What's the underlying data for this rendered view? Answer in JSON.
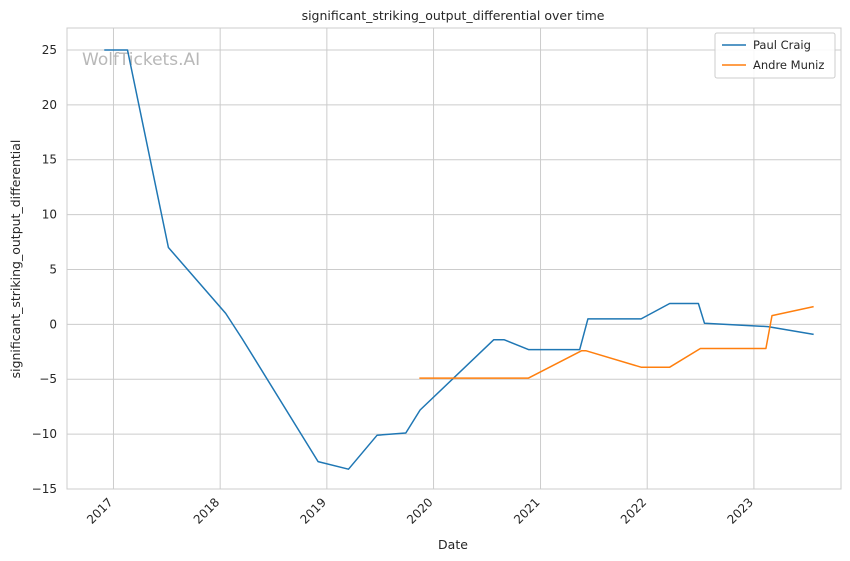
{
  "chart_data": {
    "type": "line",
    "title": "significant_striking_output_differential over time",
    "xlabel": "Date",
    "ylabel": "significant_striking_output_differential",
    "watermark": "WolfTickets.AI",
    "x_ticks": [
      "2017",
      "2018",
      "2019",
      "2020",
      "2021",
      "2022",
      "2023"
    ],
    "y_ticks": [
      -15,
      -10,
      -5,
      0,
      5,
      10,
      15,
      20,
      25
    ],
    "xlim": [
      "2016-07-26",
      "2023-10-26"
    ],
    "ylim": [
      -15,
      27
    ],
    "grid": true,
    "legend_position": "top-right",
    "series": [
      {
        "name": "Paul Craig",
        "color": "#1f77b4",
        "points": [
          [
            "2016-12-03",
            25
          ],
          [
            "2017-02-18",
            25
          ],
          [
            "2017-07-08",
            7
          ],
          [
            "2018-01-20",
            1
          ],
          [
            "2018-03-17",
            -1.3
          ],
          [
            "2018-12-02",
            -12.5
          ],
          [
            "2019-03-16",
            -13.2
          ],
          [
            "2019-06-22",
            -10.1
          ],
          [
            "2019-09-28",
            -9.9
          ],
          [
            "2019-11-16",
            -7.8
          ],
          [
            "2020-07-25",
            -1.4
          ],
          [
            "2020-08-29",
            -1.4
          ],
          [
            "2020-11-21",
            -2.3
          ],
          [
            "2021-05-15",
            -2.3
          ],
          [
            "2021-06-12",
            0.5
          ],
          [
            "2021-12-11",
            0.5
          ],
          [
            "2022-03-19",
            1.9
          ],
          [
            "2022-06-25",
            1.9
          ],
          [
            "2022-07-16",
            0.1
          ],
          [
            "2023-02-18",
            -0.2
          ],
          [
            "2023-07-22",
            -0.9
          ]
        ]
      },
      {
        "name": "Andre Muniz",
        "color": "#ff7f0e",
        "points": [
          [
            "2019-11-16",
            -4.9
          ],
          [
            "2020-11-21",
            -4.9
          ],
          [
            "2021-05-22",
            -2.4
          ],
          [
            "2021-06-05",
            -2.4
          ],
          [
            "2021-12-11",
            -3.9
          ],
          [
            "2022-03-19",
            -3.9
          ],
          [
            "2022-07-02",
            -2.2
          ],
          [
            "2023-02-11",
            -2.2
          ],
          [
            "2023-03-04",
            0.8
          ],
          [
            "2023-07-22",
            1.6
          ]
        ]
      }
    ]
  }
}
